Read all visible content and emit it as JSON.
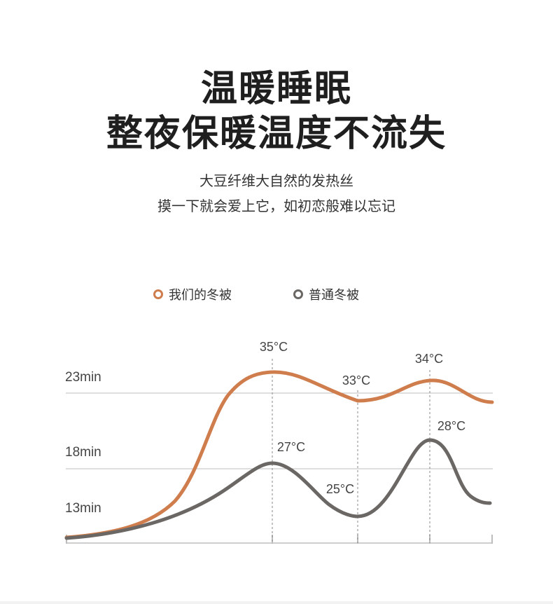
{
  "headline": {
    "line1": "温暖睡眠",
    "line2": "整夜保暖温度不流失"
  },
  "subtitle": {
    "line1": "大豆纤维大自然的发热丝",
    "line2": "摸一下就会爱上它，如初恋般难以忘记"
  },
  "colors": {
    "ours": "#cf7d4c",
    "normal": "#6b6764",
    "grid": "#bdbdbd"
  },
  "chart_data": {
    "type": "line",
    "legend": [
      "我们的冬被",
      "普通冬被"
    ],
    "y_tick_labels": [
      "23min",
      "18min",
      "13min"
    ],
    "series": [
      {
        "name": "我们的冬被",
        "peaks": [
          {
            "label": "35°C"
          },
          {
            "label": "33°C"
          },
          {
            "label": "34°C"
          }
        ]
      },
      {
        "name": "普通冬被",
        "peaks": [
          {
            "label": "27°C"
          },
          {
            "label": "25°C"
          },
          {
            "label": "28°C"
          }
        ]
      }
    ],
    "grid": true
  }
}
